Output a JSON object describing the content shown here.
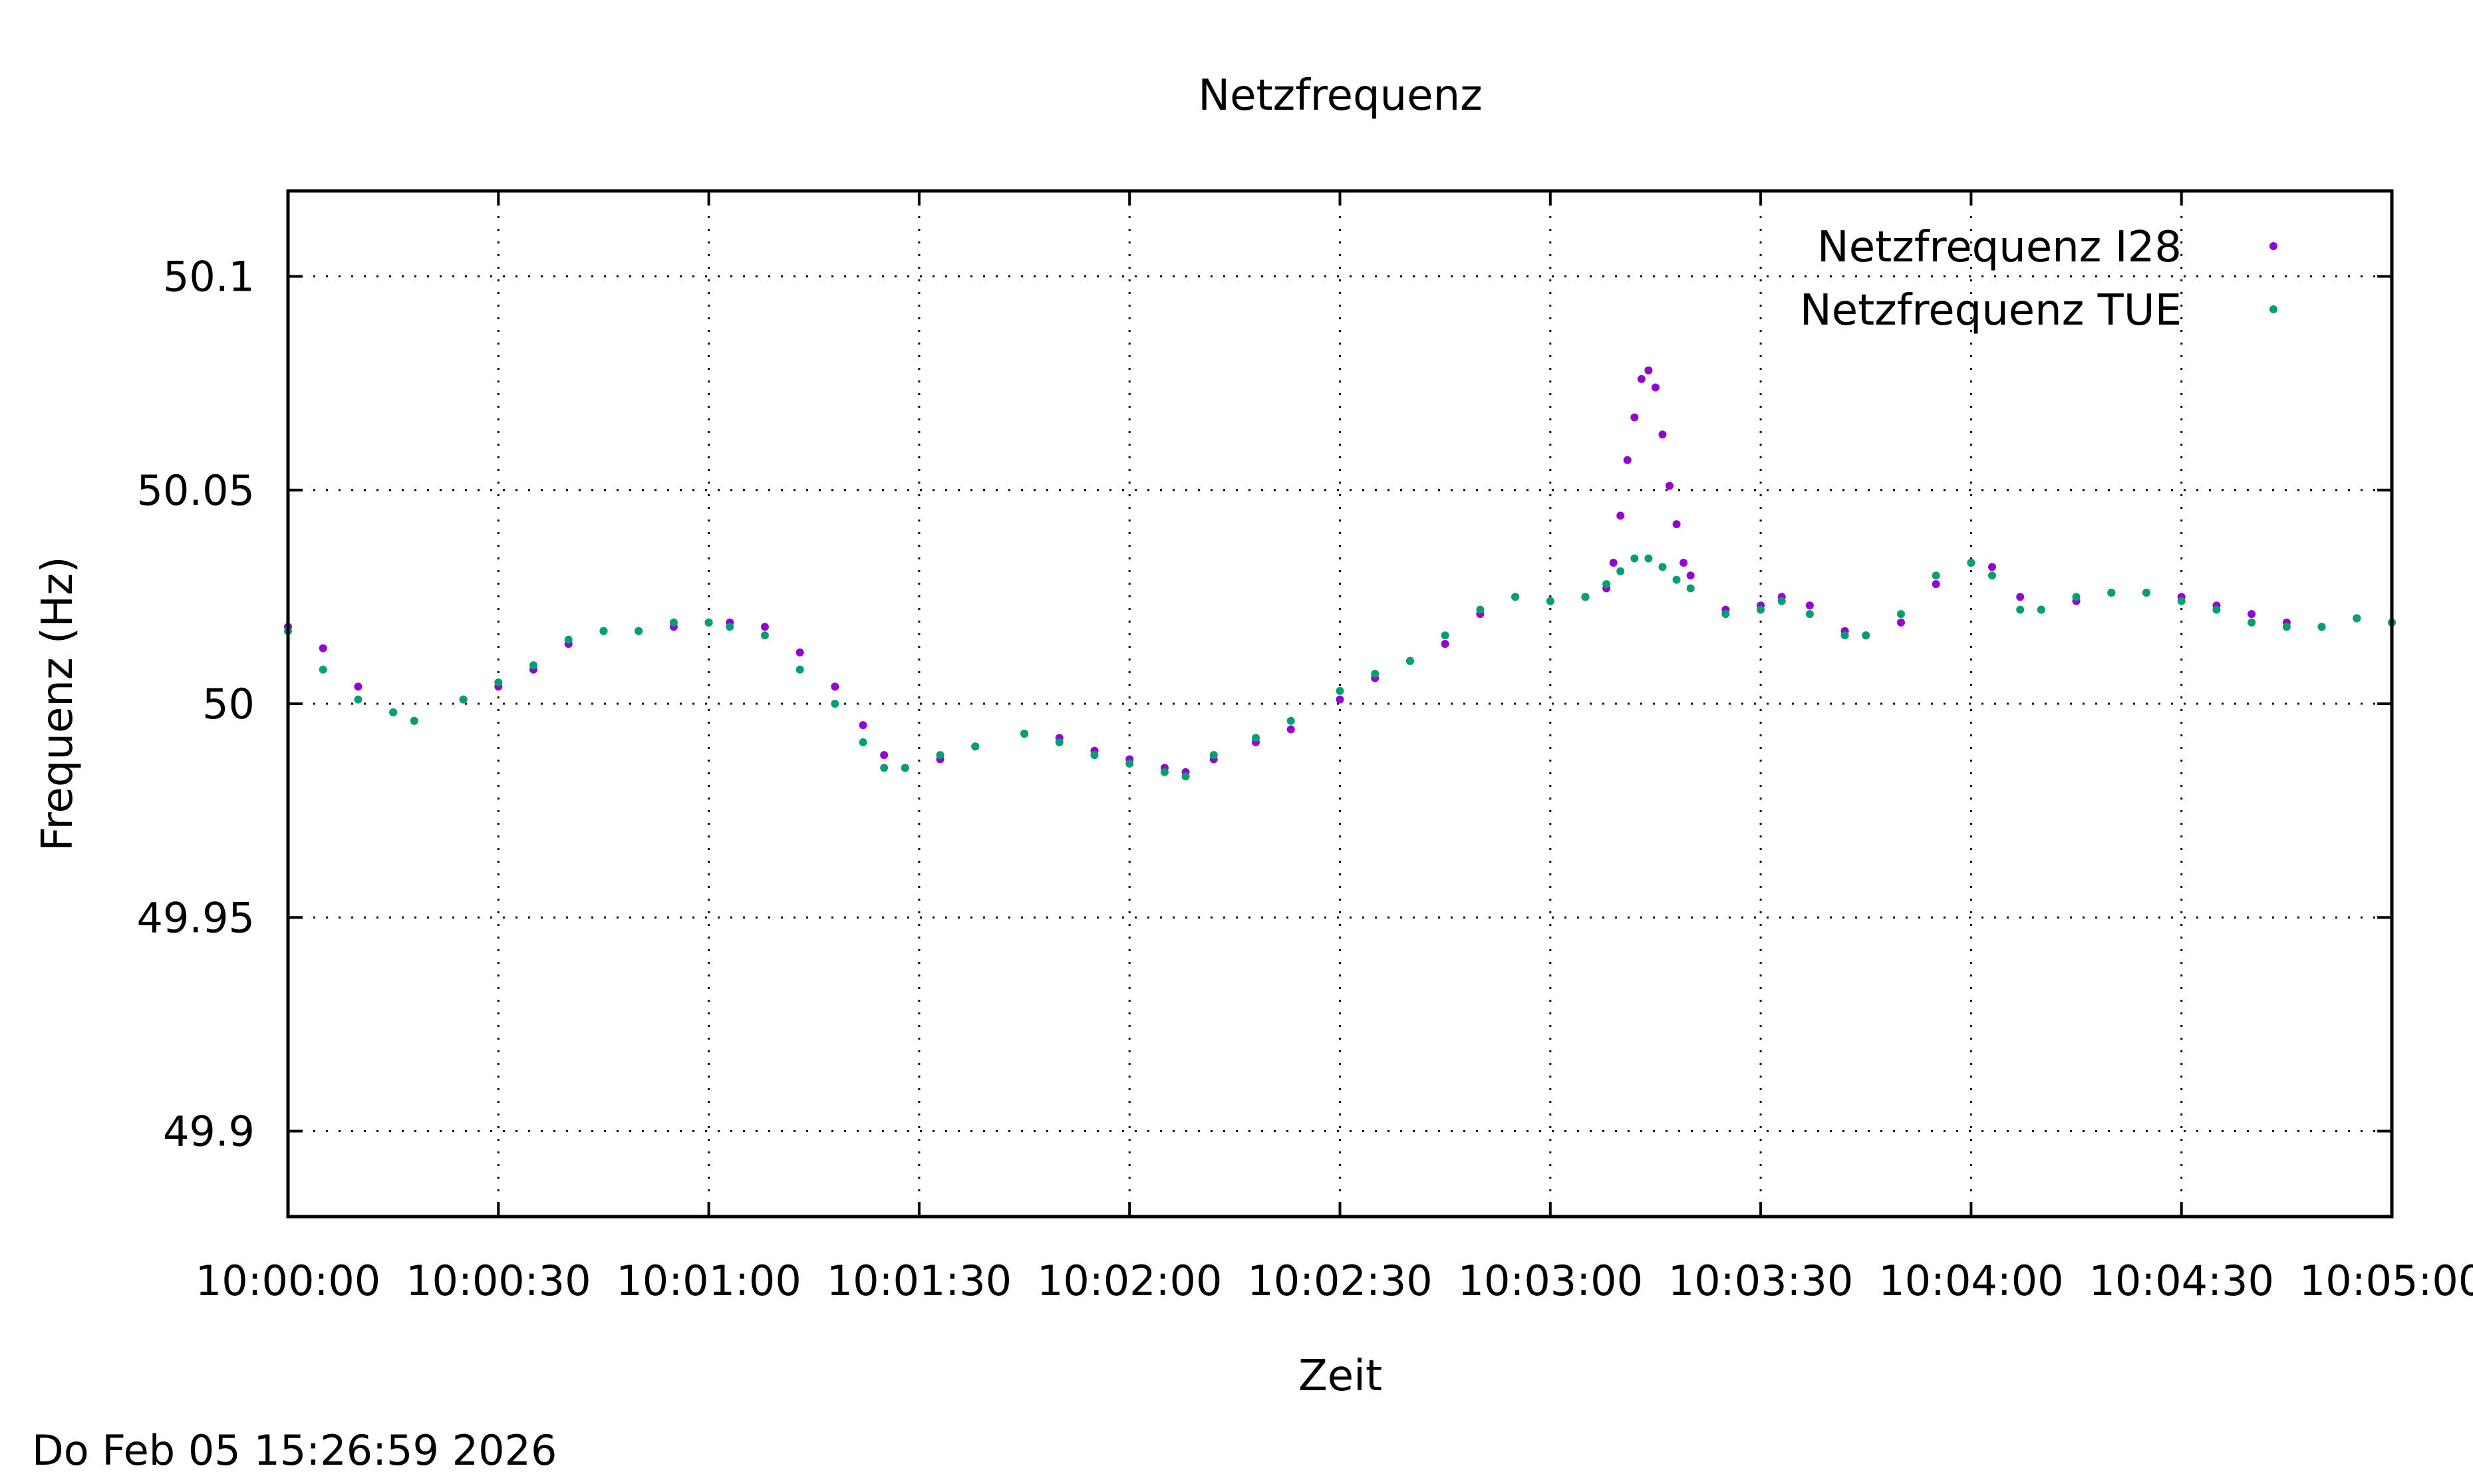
{
  "footer_text": "Do Feb 05 15:26:59 2026",
  "chart_data": {
    "type": "scatter",
    "title": "Netzfrequenz",
    "xlabel": "Zeit",
    "ylabel": "Frequenz (Hz)",
    "xlim": [
      "10:00:00",
      "10:05:00"
    ],
    "ylim": [
      49.88,
      50.12
    ],
    "grid": true,
    "legend_position": "top-right",
    "x_ticks": [
      "10:00:00",
      "10:00:30",
      "10:01:00",
      "10:01:30",
      "10:02:00",
      "10:02:30",
      "10:03:00",
      "10:03:30",
      "10:04:00",
      "10:04:30",
      "10:05:00"
    ],
    "y_ticks": [
      "49.9",
      "49.95",
      "50",
      "50.05",
      "50.1"
    ],
    "x_tick_values": [
      0,
      30,
      60,
      90,
      120,
      150,
      180,
      210,
      240,
      270,
      300
    ],
    "y_tick_values": [
      49.9,
      49.95,
      50.0,
      50.05,
      50.1
    ],
    "series": [
      {
        "name": "Netzfrequenz I28",
        "color": "#9400d3",
        "points": [
          [
            "10:00:00",
            50.018
          ],
          [
            "10:00:05",
            50.013
          ],
          [
            "10:00:10",
            50.004
          ],
          [
            "10:00:15",
            49.998
          ],
          [
            "10:00:18",
            49.996
          ],
          [
            "10:00:25",
            50.001
          ],
          [
            "10:00:30",
            50.004
          ],
          [
            "10:00:35",
            50.008
          ],
          [
            "10:00:40",
            50.014
          ],
          [
            "10:00:45",
            50.017
          ],
          [
            "10:00:50",
            50.017
          ],
          [
            "10:00:55",
            50.018
          ],
          [
            "10:01:00",
            50.019
          ],
          [
            "10:01:03",
            50.019
          ],
          [
            "10:01:08",
            50.018
          ],
          [
            "10:01:13",
            50.012
          ],
          [
            "10:01:18",
            50.004
          ],
          [
            "10:01:22",
            49.995
          ],
          [
            "10:01:25",
            49.988
          ],
          [
            "10:01:28",
            49.985
          ],
          [
            "10:01:33",
            49.987
          ],
          [
            "10:01:38",
            49.99
          ],
          [
            "10:01:45",
            49.993
          ],
          [
            "10:01:50",
            49.992
          ],
          [
            "10:01:55",
            49.989
          ],
          [
            "10:02:00",
            49.987
          ],
          [
            "10:02:05",
            49.985
          ],
          [
            "10:02:08",
            49.984
          ],
          [
            "10:02:12",
            49.987
          ],
          [
            "10:02:18",
            49.991
          ],
          [
            "10:02:23",
            49.994
          ],
          [
            "10:02:30",
            50.001
          ],
          [
            "10:02:35",
            50.006
          ],
          [
            "10:02:40",
            50.01
          ],
          [
            "10:02:45",
            50.014
          ],
          [
            "10:02:50",
            50.021
          ],
          [
            "10:02:55",
            50.025
          ],
          [
            "10:03:00",
            50.024
          ],
          [
            "10:03:05",
            50.025
          ],
          [
            "10:03:08",
            50.027
          ],
          [
            "10:03:09",
            50.033
          ],
          [
            "10:03:10",
            50.044
          ],
          [
            "10:03:11",
            50.057
          ],
          [
            "10:03:12",
            50.067
          ],
          [
            "10:03:13",
            50.076
          ],
          [
            "10:03:14",
            50.078
          ],
          [
            "10:03:15",
            50.074
          ],
          [
            "10:03:16",
            50.063
          ],
          [
            "10:03:17",
            50.051
          ],
          [
            "10:03:18",
            50.042
          ],
          [
            "10:03:19",
            50.033
          ],
          [
            "10:03:20",
            50.03
          ],
          [
            "10:03:25",
            50.022
          ],
          [
            "10:03:30",
            50.023
          ],
          [
            "10:03:33",
            50.025
          ],
          [
            "10:03:37",
            50.023
          ],
          [
            "10:03:42",
            50.017
          ],
          [
            "10:03:45",
            50.016
          ],
          [
            "10:03:50",
            50.019
          ],
          [
            "10:03:55",
            50.028
          ],
          [
            "10:04:00",
            50.033
          ],
          [
            "10:04:03",
            50.032
          ],
          [
            "10:04:07",
            50.025
          ],
          [
            "10:04:10",
            50.022
          ],
          [
            "10:04:15",
            50.024
          ],
          [
            "10:04:20",
            50.026
          ],
          [
            "10:04:25",
            50.026
          ],
          [
            "10:04:30",
            50.025
          ],
          [
            "10:04:35",
            50.023
          ],
          [
            "10:04:40",
            50.021
          ],
          [
            "10:04:45",
            50.019
          ],
          [
            "10:04:50",
            50.018
          ],
          [
            "10:04:55",
            50.02
          ],
          [
            "10:05:00",
            50.019
          ]
        ]
      },
      {
        "name": "Netzfrequenz TUE",
        "color": "#009e73",
        "points": [
          [
            "10:00:00",
            50.017
          ],
          [
            "10:00:05",
            50.008
          ],
          [
            "10:00:10",
            50.001
          ],
          [
            "10:00:15",
            49.998
          ],
          [
            "10:00:18",
            49.996
          ],
          [
            "10:00:25",
            50.001
          ],
          [
            "10:00:30",
            50.005
          ],
          [
            "10:00:35",
            50.009
          ],
          [
            "10:00:40",
            50.015
          ],
          [
            "10:00:45",
            50.017
          ],
          [
            "10:00:50",
            50.017
          ],
          [
            "10:00:55",
            50.019
          ],
          [
            "10:01:00",
            50.019
          ],
          [
            "10:01:03",
            50.018
          ],
          [
            "10:01:08",
            50.016
          ],
          [
            "10:01:13",
            50.008
          ],
          [
            "10:01:18",
            50.0
          ],
          [
            "10:01:22",
            49.991
          ],
          [
            "10:01:25",
            49.985
          ],
          [
            "10:01:28",
            49.985
          ],
          [
            "10:01:33",
            49.988
          ],
          [
            "10:01:38",
            49.99
          ],
          [
            "10:01:45",
            49.993
          ],
          [
            "10:01:50",
            49.991
          ],
          [
            "10:01:55",
            49.988
          ],
          [
            "10:02:00",
            49.986
          ],
          [
            "10:02:05",
            49.984
          ],
          [
            "10:02:08",
            49.983
          ],
          [
            "10:02:12",
            49.988
          ],
          [
            "10:02:18",
            49.992
          ],
          [
            "10:02:23",
            49.996
          ],
          [
            "10:02:30",
            50.003
          ],
          [
            "10:02:35",
            50.007
          ],
          [
            "10:02:40",
            50.01
          ],
          [
            "10:02:45",
            50.016
          ],
          [
            "10:02:50",
            50.022
          ],
          [
            "10:02:55",
            50.025
          ],
          [
            "10:03:00",
            50.024
          ],
          [
            "10:03:05",
            50.025
          ],
          [
            "10:03:08",
            50.028
          ],
          [
            "10:03:10",
            50.031
          ],
          [
            "10:03:12",
            50.034
          ],
          [
            "10:03:14",
            50.034
          ],
          [
            "10:03:16",
            50.032
          ],
          [
            "10:03:18",
            50.029
          ],
          [
            "10:03:20",
            50.027
          ],
          [
            "10:03:25",
            50.021
          ],
          [
            "10:03:30",
            50.022
          ],
          [
            "10:03:33",
            50.024
          ],
          [
            "10:03:37",
            50.021
          ],
          [
            "10:03:42",
            50.016
          ],
          [
            "10:03:45",
            50.016
          ],
          [
            "10:03:50",
            50.021
          ],
          [
            "10:03:55",
            50.03
          ],
          [
            "10:04:00",
            50.033
          ],
          [
            "10:04:03",
            50.03
          ],
          [
            "10:04:07",
            50.022
          ],
          [
            "10:04:10",
            50.022
          ],
          [
            "10:04:15",
            50.025
          ],
          [
            "10:04:20",
            50.026
          ],
          [
            "10:04:25",
            50.026
          ],
          [
            "10:04:30",
            50.024
          ],
          [
            "10:04:35",
            50.022
          ],
          [
            "10:04:40",
            50.019
          ],
          [
            "10:04:45",
            50.018
          ],
          [
            "10:04:50",
            50.018
          ],
          [
            "10:04:55",
            50.02
          ],
          [
            "10:05:00",
            50.019
          ]
        ]
      }
    ]
  }
}
